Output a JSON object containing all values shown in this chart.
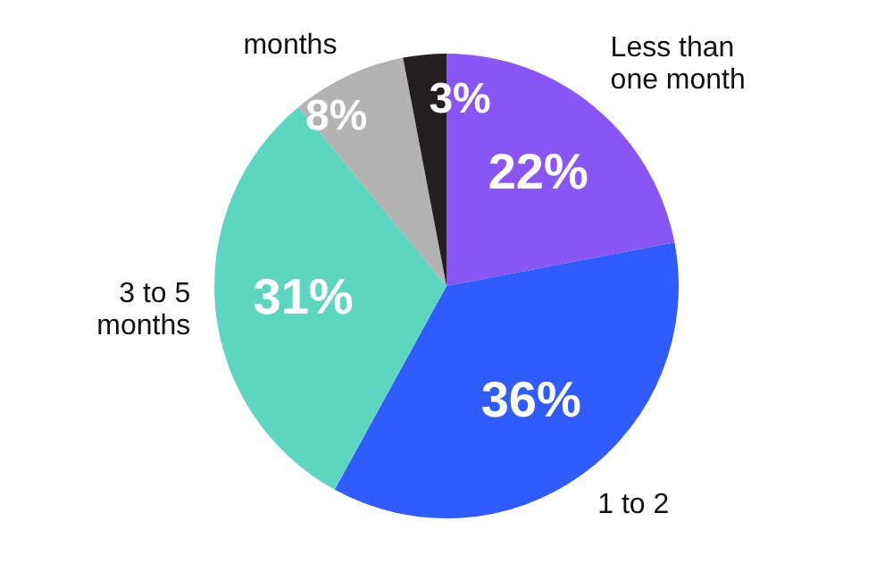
{
  "chart_data": {
    "type": "pie",
    "categories": [
      "Less than one month",
      "1 to 2",
      "3 to 5 months",
      "months",
      null
    ],
    "values": [
      22,
      36,
      31,
      8,
      3
    ],
    "value_labels": [
      "22%",
      "36%",
      "31%",
      "8%",
      "3%"
    ],
    "colors": [
      "#8a55f5",
      "#2f5bff",
      "#5dd6c0",
      "#b3b3b3",
      "#231f20"
    ],
    "legend": false
  }
}
